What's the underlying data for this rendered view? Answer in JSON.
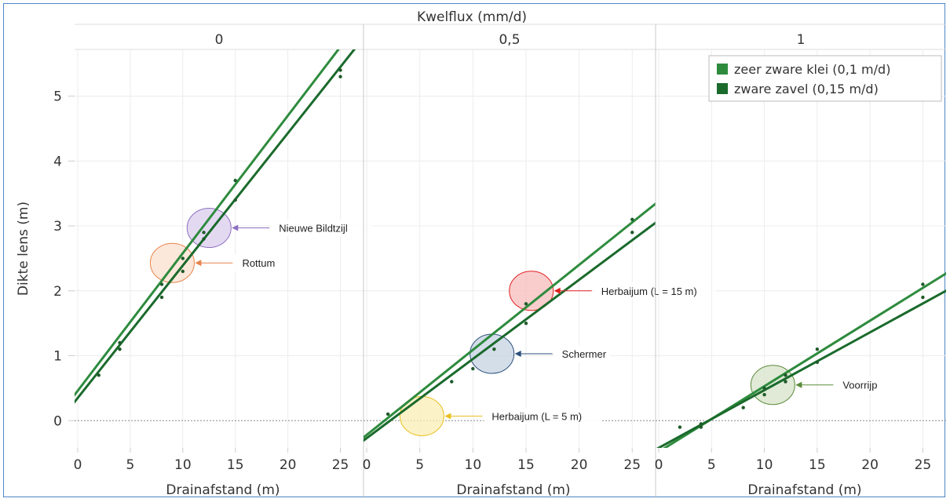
{
  "chart_data": {
    "type": "scatter",
    "title": "Kwelflux (mm/d)",
    "ylabel": "Dikte lens (m)",
    "xlabel": "Drainafstand (m)",
    "ylim": [
      -0.42,
      5.72
    ],
    "xlim": [
      -0.3,
      27.2
    ],
    "yticks": [
      "0",
      "1",
      "2",
      "3",
      "4",
      "5"
    ],
    "xticks": [
      "0",
      "5",
      "10",
      "15",
      "20",
      "25"
    ],
    "grid": true,
    "legend_position": "top-right",
    "series": [
      {
        "name": "zeer zware klei (0,1 m/d)",
        "color": "#2e8b3e"
      },
      {
        "name": "zware zavel (0,15 m/d)",
        "color": "#1a6a2c"
      }
    ],
    "panels": [
      {
        "header": "0",
        "points": [
          {
            "x": 2,
            "y": 0.7
          },
          {
            "x": 4,
            "y": 1.2
          },
          {
            "x": 4,
            "y": 1.1
          },
          {
            "x": 8,
            "y": 2.1
          },
          {
            "x": 8,
            "y": 1.9
          },
          {
            "x": 10,
            "y": 2.5
          },
          {
            "x": 10,
            "y": 2.3
          },
          {
            "x": 12,
            "y": 2.9
          },
          {
            "x": 12,
            "y": 2.8
          },
          {
            "x": 15,
            "y": 3.7
          },
          {
            "x": 15,
            "y": 3.4
          },
          {
            "x": 25,
            "y": 5.4
          },
          {
            "x": 25,
            "y": 5.3
          }
        ],
        "lines": [
          {
            "series": 0,
            "intercept": 0.46,
            "slope": 0.212
          },
          {
            "series": 1,
            "intercept": 0.35,
            "slope": 0.204
          }
        ],
        "callouts": [
          {
            "label": "Nieuwe Bildtzijl",
            "cx": 12.5,
            "cy": 2.97,
            "color": "#8e6fc0",
            "fill": "#d9cdee"
          },
          {
            "label": "Rottum",
            "cx": 9.0,
            "cy": 2.43,
            "color": "#e8834a",
            "fill": "#fbe0cf"
          }
        ]
      },
      {
        "header": "0,5",
        "points": [
          {
            "x": 2,
            "y": 0.1
          },
          {
            "x": 8,
            "y": 0.6
          },
          {
            "x": 10,
            "y": 0.8
          },
          {
            "x": 12,
            "y": 1.1
          },
          {
            "x": 15,
            "y": 1.8
          },
          {
            "x": 15,
            "y": 1.5
          },
          {
            "x": 25,
            "y": 3.1
          },
          {
            "x": 25,
            "y": 2.9
          }
        ],
        "lines": [
          {
            "series": 0,
            "intercept": -0.22,
            "slope": 0.131
          },
          {
            "series": 1,
            "intercept": -0.27,
            "slope": 0.122
          }
        ],
        "callouts": [
          {
            "label": "Herbaijum (L = 15 m)",
            "cx": 15.5,
            "cy": 2.0,
            "color": "#e02020",
            "fill": "#f8bcbc"
          },
          {
            "label": "Schermer",
            "cx": 11.8,
            "cy": 1.03,
            "color": "#2c4f7c",
            "fill": "#c6d3e2"
          },
          {
            "label": "Herbaijum (L = 5 m)",
            "cx": 5.2,
            "cy": 0.07,
            "color": "#e8c020",
            "fill": "#fbeeb5"
          }
        ]
      },
      {
        "header": "1",
        "points": [
          {
            "x": 2,
            "y": -0.1
          },
          {
            "x": 4,
            "y": -0.05
          },
          {
            "x": 4,
            "y": -0.1
          },
          {
            "x": 8,
            "y": 0.2
          },
          {
            "x": 10,
            "y": 0.5
          },
          {
            "x": 10,
            "y": 0.4
          },
          {
            "x": 12,
            "y": 0.7
          },
          {
            "x": 12,
            "y": 0.6
          },
          {
            "x": 15,
            "y": 1.1
          },
          {
            "x": 15,
            "y": 0.9
          },
          {
            "x": 25,
            "y": 2.1
          },
          {
            "x": 25,
            "y": 1.9
          }
        ],
        "lines": [
          {
            "series": 0,
            "intercept": -0.48,
            "slope": 0.101
          },
          {
            "series": 1,
            "intercept": -0.42,
            "slope": 0.089
          }
        ],
        "callouts": [
          {
            "label": "Voorrijp",
            "cx": 10.8,
            "cy": 0.55,
            "color": "#5a8a3a",
            "fill": "#d5e3c8"
          }
        ]
      }
    ]
  }
}
